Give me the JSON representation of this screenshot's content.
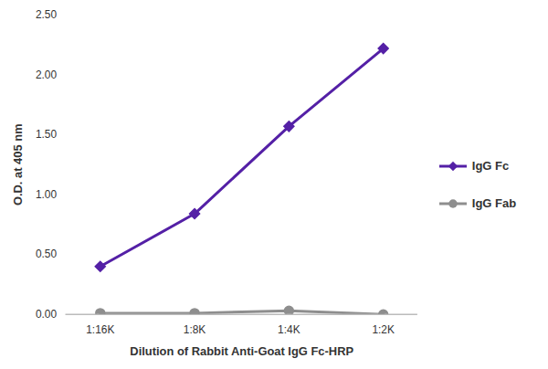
{
  "chart_data": {
    "type": "line",
    "x_label": "Dilution of Rabbit Anti-Goat IgG Fc-HRP",
    "y_label": "O.D. at 405 nm",
    "categories": [
      "1:16K",
      "1:8K",
      "1:4K",
      "1:2K"
    ],
    "series": [
      {
        "name": "IgG Fc",
        "color": "#5420a6",
        "marker": "diamond",
        "values": [
          0.4,
          0.84,
          1.57,
          2.22
        ]
      },
      {
        "name": "IgG Fab",
        "color": "#8e8e8e",
        "marker": "circle",
        "values": [
          0.01,
          0.01,
          0.03,
          0.0
        ]
      }
    ],
    "ylim": [
      0,
      2.5
    ],
    "yticks": [
      {
        "value": 0,
        "label": "0.00"
      },
      {
        "value": 0.5,
        "label": "0.50"
      },
      {
        "value": 1,
        "label": "1.00"
      },
      {
        "value": 1.5,
        "label": "1.50"
      },
      {
        "value": 2,
        "label": "2.00"
      },
      {
        "value": 2.5,
        "label": "2.50"
      }
    ],
    "grid": false,
    "legend": "right"
  }
}
